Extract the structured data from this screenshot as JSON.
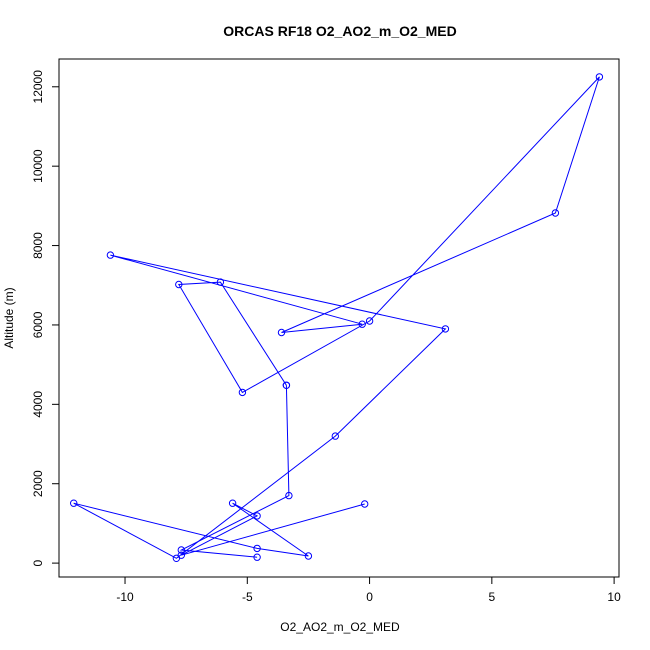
{
  "chart_data": {
    "type": "line",
    "title": "ORCAS RF18 O2_AO2_m_O2_MED",
    "xlabel": "O2_AO2_m_O2_MED",
    "ylabel": "Altitude (m)",
    "xlim": [
      -12.7,
      10.2
    ],
    "ylim": [
      -350,
      12700
    ],
    "x_ticks": [
      -10,
      -5,
      0,
      5,
      10
    ],
    "x_tick_labels": [
      "-10",
      "-5",
      "0",
      "5",
      "10"
    ],
    "y_ticks": [
      0,
      2000,
      4000,
      6000,
      8000,
      10000,
      12000
    ],
    "y_tick_labels": [
      "0",
      "2000",
      "4000",
      "6000",
      "8000",
      "10000",
      "12000"
    ],
    "grid": false,
    "markers": "open-circle",
    "series": [
      {
        "color": "#0000ff",
        "x": [
          -0.2,
          -7.7,
          -4.6,
          -5.6,
          -2.5,
          -4.6,
          -12.1,
          -7.9,
          -1.4,
          3.1,
          -10.6,
          -0.3,
          -3.6,
          7.6,
          9.4,
          0.0,
          -5.2,
          -7.8,
          -6.1,
          -3.4
        ],
        "y": [
          1490,
          200,
          1190,
          1510,
          180,
          370,
          1510,
          120,
          3200,
          5900,
          7760,
          6020,
          5810,
          8820,
          12250,
          6100,
          4300,
          7020,
          7080,
          4480
        ]
      },
      {
        "color": "#0000ff",
        "x": [
          -3.4,
          -3.3,
          -7.7,
          -4.6
        ],
        "y": [
          4480,
          1700,
          330,
          150
        ]
      }
    ]
  }
}
